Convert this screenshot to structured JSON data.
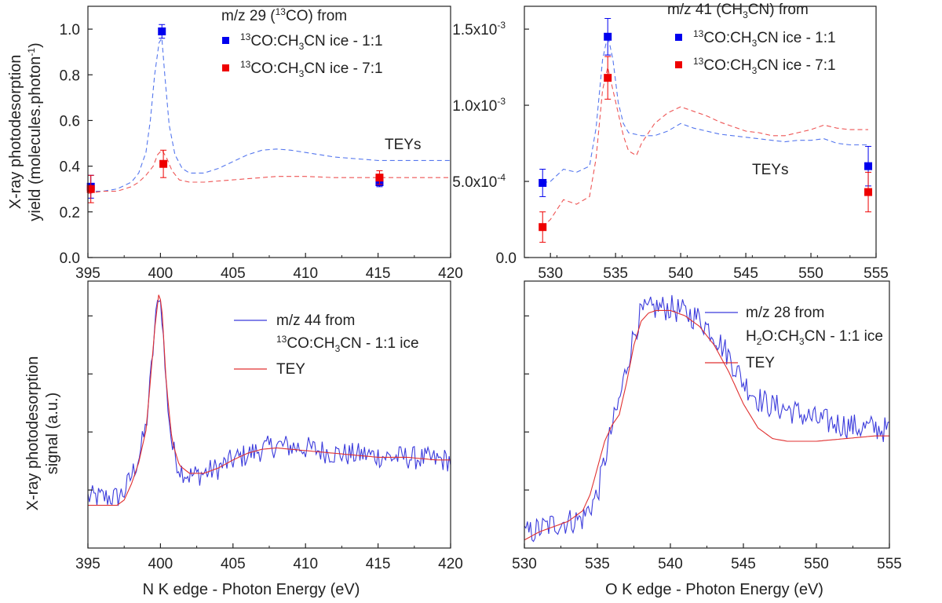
{
  "chart_data": [
    {
      "id": "a",
      "type": "scatter",
      "title": "",
      "legend_title": [
        "m/z 29 (",
        "13",
        "CO) from"
      ],
      "annotation": "TEYs",
      "xlabel": "",
      "ylabel_lines": [
        "X-ray photodesorption",
        "yield (molecules.photon",
        "-1",
        ")"
      ],
      "xlim": [
        395,
        420
      ],
      "ylim": [
        0.0,
        1.1
      ],
      "xticks": [
        395,
        400,
        405,
        410,
        415,
        420
      ],
      "yticks": [
        0.0,
        0.2,
        0.4,
        0.6,
        0.8,
        1.0
      ],
      "ytick_labels": [
        "0.0",
        "0.2",
        "0.4",
        "0.6",
        "0.8",
        "1.0"
      ],
      "series": [
        {
          "name": "13CO:CH3CN ice - 1:1",
          "label_parts": [
            "",
            "13",
            "CO:CH",
            "3",
            "CN ice - 1:1"
          ],
          "color": "#0000ee",
          "x": [
            395.2,
            400.1,
            415.1
          ],
          "y": [
            0.31,
            0.99,
            0.33
          ],
          "err": [
            0.05,
            0.03,
            0.02
          ]
        },
        {
          "name": "13CO:CH3CN ice - 7:1",
          "label_parts": [
            "",
            "13",
            "CO:CH",
            "3",
            "CN ice - 7:1"
          ],
          "color": "#ee0000",
          "x": [
            395.2,
            400.2,
            415.1
          ],
          "y": [
            0.3,
            0.41,
            0.35
          ],
          "err": [
            0.06,
            0.06,
            0.03
          ]
        }
      ],
      "tey_curves": [
        {
          "color": "#5577ee",
          "x": [
            395,
            396,
            397,
            398,
            398.5,
            399,
            399.3,
            399.6,
            399.9,
            400.1,
            400.3,
            400.6,
            401,
            401.5,
            402,
            403,
            404,
            405,
            406,
            407,
            408,
            409,
            410,
            411,
            412,
            413,
            414,
            415,
            416,
            417,
            418,
            419,
            420
          ],
          "y": [
            0.29,
            0.29,
            0.3,
            0.33,
            0.37,
            0.46,
            0.6,
            0.8,
            0.94,
            0.96,
            0.8,
            0.58,
            0.45,
            0.39,
            0.37,
            0.37,
            0.39,
            0.42,
            0.45,
            0.47,
            0.475,
            0.47,
            0.46,
            0.45,
            0.44,
            0.435,
            0.43,
            0.425,
            0.425,
            0.425,
            0.425,
            0.425,
            0.425
          ]
        },
        {
          "color": "#ee5555",
          "x": [
            395,
            396,
            397,
            398,
            398.5,
            399,
            399.5,
            399.8,
            400.1,
            400.4,
            400.8,
            401.3,
            402,
            403,
            404,
            405,
            406,
            407,
            408,
            409,
            410,
            412,
            414,
            416,
            418,
            420
          ],
          "y": [
            0.28,
            0.29,
            0.29,
            0.31,
            0.33,
            0.36,
            0.4,
            0.45,
            0.47,
            0.44,
            0.38,
            0.34,
            0.33,
            0.33,
            0.335,
            0.34,
            0.345,
            0.35,
            0.355,
            0.355,
            0.355,
            0.35,
            0.35,
            0.35,
            0.35,
            0.35
          ]
        }
      ]
    },
    {
      "id": "b",
      "type": "scatter",
      "title": "",
      "legend_title": [
        "m/z 41 (CH",
        "3",
        "CN) from"
      ],
      "annotation": "TEYs",
      "xlabel": "",
      "ylabel_lines": [],
      "xlim": [
        528,
        555
      ],
      "ylim": [
        0.0,
        0.00165
      ],
      "xticks": [
        530,
        535,
        540,
        545,
        550,
        555
      ],
      "yticks": [
        0.0,
        0.0005,
        0.001,
        0.0015
      ],
      "ytick_labels": [
        "0.0",
        "5.0x10",
        "1.0x10",
        "1.5x10"
      ],
      "ytick_exps": [
        "",
        "-4",
        "-3",
        "-3"
      ],
      "series": [
        {
          "name": "13CO:CH3CN ice - 1:1",
          "label_parts": [
            "",
            "13",
            "CO:CH",
            "3",
            "CN ice - 1:1"
          ],
          "color": "#0000ee",
          "x": [
            529.4,
            534.4,
            554.4
          ],
          "y": [
            0.00049,
            0.00145,
            0.0006
          ],
          "err": [
            9e-05,
            0.00012,
            0.00013
          ]
        },
        {
          "name": "13CO:CH3CN ice - 7:1",
          "label_parts": [
            "",
            "13",
            "CO:CH",
            "3",
            "CN ice - 7:1"
          ],
          "color": "#ee0000",
          "x": [
            529.4,
            534.4,
            554.4
          ],
          "y": [
            0.0002,
            0.00118,
            0.00043
          ],
          "err": [
            0.0001,
            0.00014,
            0.00013
          ]
        }
      ],
      "tey_curves": [
        {
          "color": "#5577ee",
          "x": [
            529.4,
            530,
            531,
            532,
            533,
            533.5,
            534,
            534.4,
            534.8,
            535.2,
            535.6,
            536,
            537,
            538,
            539,
            540,
            541,
            542,
            543,
            544,
            545,
            546,
            547,
            548,
            549,
            550,
            551,
            552,
            553,
            554.4
          ],
          "y": [
            0.00049,
            0.0005,
            0.00058,
            0.00056,
            0.0006,
            0.00085,
            0.0013,
            0.00146,
            0.0013,
            0.00102,
            0.00088,
            0.00082,
            0.0008,
            0.0008,
            0.00083,
            0.00088,
            0.00085,
            0.00083,
            0.00081,
            0.0008,
            0.00079,
            0.00078,
            0.00077,
            0.00076,
            0.00077,
            0.00077,
            0.00078,
            0.00075,
            0.00074,
            0.00074
          ]
        },
        {
          "color": "#ee5555",
          "x": [
            529.4,
            530,
            531,
            532,
            533,
            533.5,
            534,
            534.4,
            534.8,
            535.2,
            535.6,
            536,
            536.6,
            537,
            538,
            539,
            540,
            541,
            542,
            543,
            544,
            545,
            546,
            547,
            548,
            549,
            550,
            551,
            552,
            553,
            554.4
          ],
          "y": [
            0.0002,
            0.00025,
            0.00038,
            0.00035,
            0.0004,
            0.00065,
            0.0011,
            0.00125,
            0.0011,
            0.00095,
            0.0008,
            0.0007,
            0.00067,
            0.00075,
            0.00088,
            0.00095,
            0.00099,
            0.00096,
            0.00093,
            0.00089,
            0.00086,
            0.00083,
            0.00082,
            0.0008,
            0.0008,
            0.00082,
            0.00084,
            0.00087,
            0.00085,
            0.00084,
            0.00084
          ]
        }
      ]
    },
    {
      "id": "c",
      "type": "line",
      "title": "",
      "xlabel": "N K edge - Photon Energy (eV)",
      "ylabel_lines": [
        "X-ray photodesorption",
        "signal (a.u.)"
      ],
      "xlim": [
        395,
        420
      ],
      "ylim": [
        0.0,
        1.0
      ],
      "xticks": [
        395,
        400,
        405,
        410,
        415,
        420
      ],
      "series": [
        {
          "name": "m/z 44 from",
          "label_line2_parts": [
            "",
            "13",
            "CO:CH",
            "3",
            "CN - 1:1 ice"
          ],
          "color": "#3b3bdc",
          "style": "noisy",
          "x": [
            395,
            396,
            397,
            397.5,
            398,
            398.5,
            399,
            399.3,
            399.6,
            399.9,
            400.1,
            400.4,
            400.8,
            401.3,
            402,
            403,
            404,
            405,
            406,
            407,
            408,
            409,
            410,
            411,
            412,
            413,
            414,
            415,
            416,
            417,
            418,
            419,
            420
          ],
          "y": [
            0.19,
            0.19,
            0.19,
            0.21,
            0.27,
            0.34,
            0.45,
            0.62,
            0.82,
            0.96,
            0.88,
            0.6,
            0.38,
            0.3,
            0.27,
            0.28,
            0.3,
            0.33,
            0.35,
            0.37,
            0.385,
            0.38,
            0.375,
            0.365,
            0.355,
            0.35,
            0.35,
            0.345,
            0.34,
            0.34,
            0.335,
            0.33,
            0.33
          ],
          "noise": 0.045
        },
        {
          "name": "TEY",
          "color": "#e03030",
          "style": "smooth",
          "x": [
            395,
            396,
            397,
            397.5,
            398,
            398.5,
            399,
            399.3,
            399.6,
            399.9,
            400.1,
            400.4,
            400.8,
            401.3,
            402,
            403,
            404,
            405,
            406,
            407,
            408,
            409,
            410,
            411,
            412,
            413,
            414,
            415,
            416,
            417,
            418,
            419,
            420
          ],
          "y": [
            0.16,
            0.16,
            0.16,
            0.18,
            0.24,
            0.32,
            0.44,
            0.62,
            0.82,
            0.96,
            0.9,
            0.62,
            0.4,
            0.31,
            0.28,
            0.28,
            0.3,
            0.33,
            0.355,
            0.37,
            0.375,
            0.37,
            0.365,
            0.36,
            0.355,
            0.35,
            0.345,
            0.34,
            0.34,
            0.34,
            0.335,
            0.33,
            0.33
          ]
        }
      ]
    },
    {
      "id": "d",
      "type": "line",
      "title": "",
      "xlabel": "O K edge - Photon Energy (eV)",
      "ylabel_lines": [],
      "xlim": [
        530,
        555
      ],
      "ylim": [
        0.0,
        1.0
      ],
      "xticks": [
        530,
        535,
        540,
        545,
        550,
        555
      ],
      "series": [
        {
          "name": "m/z 28 from",
          "label_line2_parts": [
            "H",
            "",
            "",
            "2",
            "O:CH",
            "3",
            "CN - 1:1 ice"
          ],
          "color": "#3b3bdc",
          "style": "noisy",
          "x": [
            530,
            531,
            532,
            533,
            534,
            535,
            535.5,
            536,
            536.5,
            537,
            537.5,
            538,
            539,
            540,
            541,
            542,
            543,
            544,
            545,
            546,
            547,
            548,
            549,
            550,
            551,
            552,
            553,
            554,
            555
          ],
          "y": [
            0.05,
            0.07,
            0.09,
            0.1,
            0.11,
            0.2,
            0.33,
            0.45,
            0.55,
            0.68,
            0.8,
            0.88,
            0.9,
            0.9,
            0.88,
            0.86,
            0.8,
            0.72,
            0.62,
            0.56,
            0.53,
            0.52,
            0.5,
            0.48,
            0.47,
            0.46,
            0.45,
            0.45,
            0.44
          ],
          "noise": 0.05
        },
        {
          "name": "TEY",
          "color": "#e03030",
          "style": "smooth",
          "x": [
            530,
            531,
            532,
            533,
            534,
            534.5,
            535,
            535.5,
            536,
            536.5,
            537,
            537.5,
            538,
            538.5,
            539,
            540,
            541,
            542,
            543,
            544,
            545,
            546,
            547,
            548,
            549,
            550,
            551,
            552,
            553,
            554,
            555
          ],
          "y": [
            0.03,
            0.06,
            0.08,
            0.1,
            0.14,
            0.2,
            0.3,
            0.4,
            0.46,
            0.5,
            0.62,
            0.76,
            0.85,
            0.88,
            0.89,
            0.89,
            0.87,
            0.83,
            0.76,
            0.66,
            0.54,
            0.45,
            0.41,
            0.4,
            0.4,
            0.4,
            0.405,
            0.41,
            0.415,
            0.42,
            0.42
          ]
        }
      ]
    }
  ]
}
